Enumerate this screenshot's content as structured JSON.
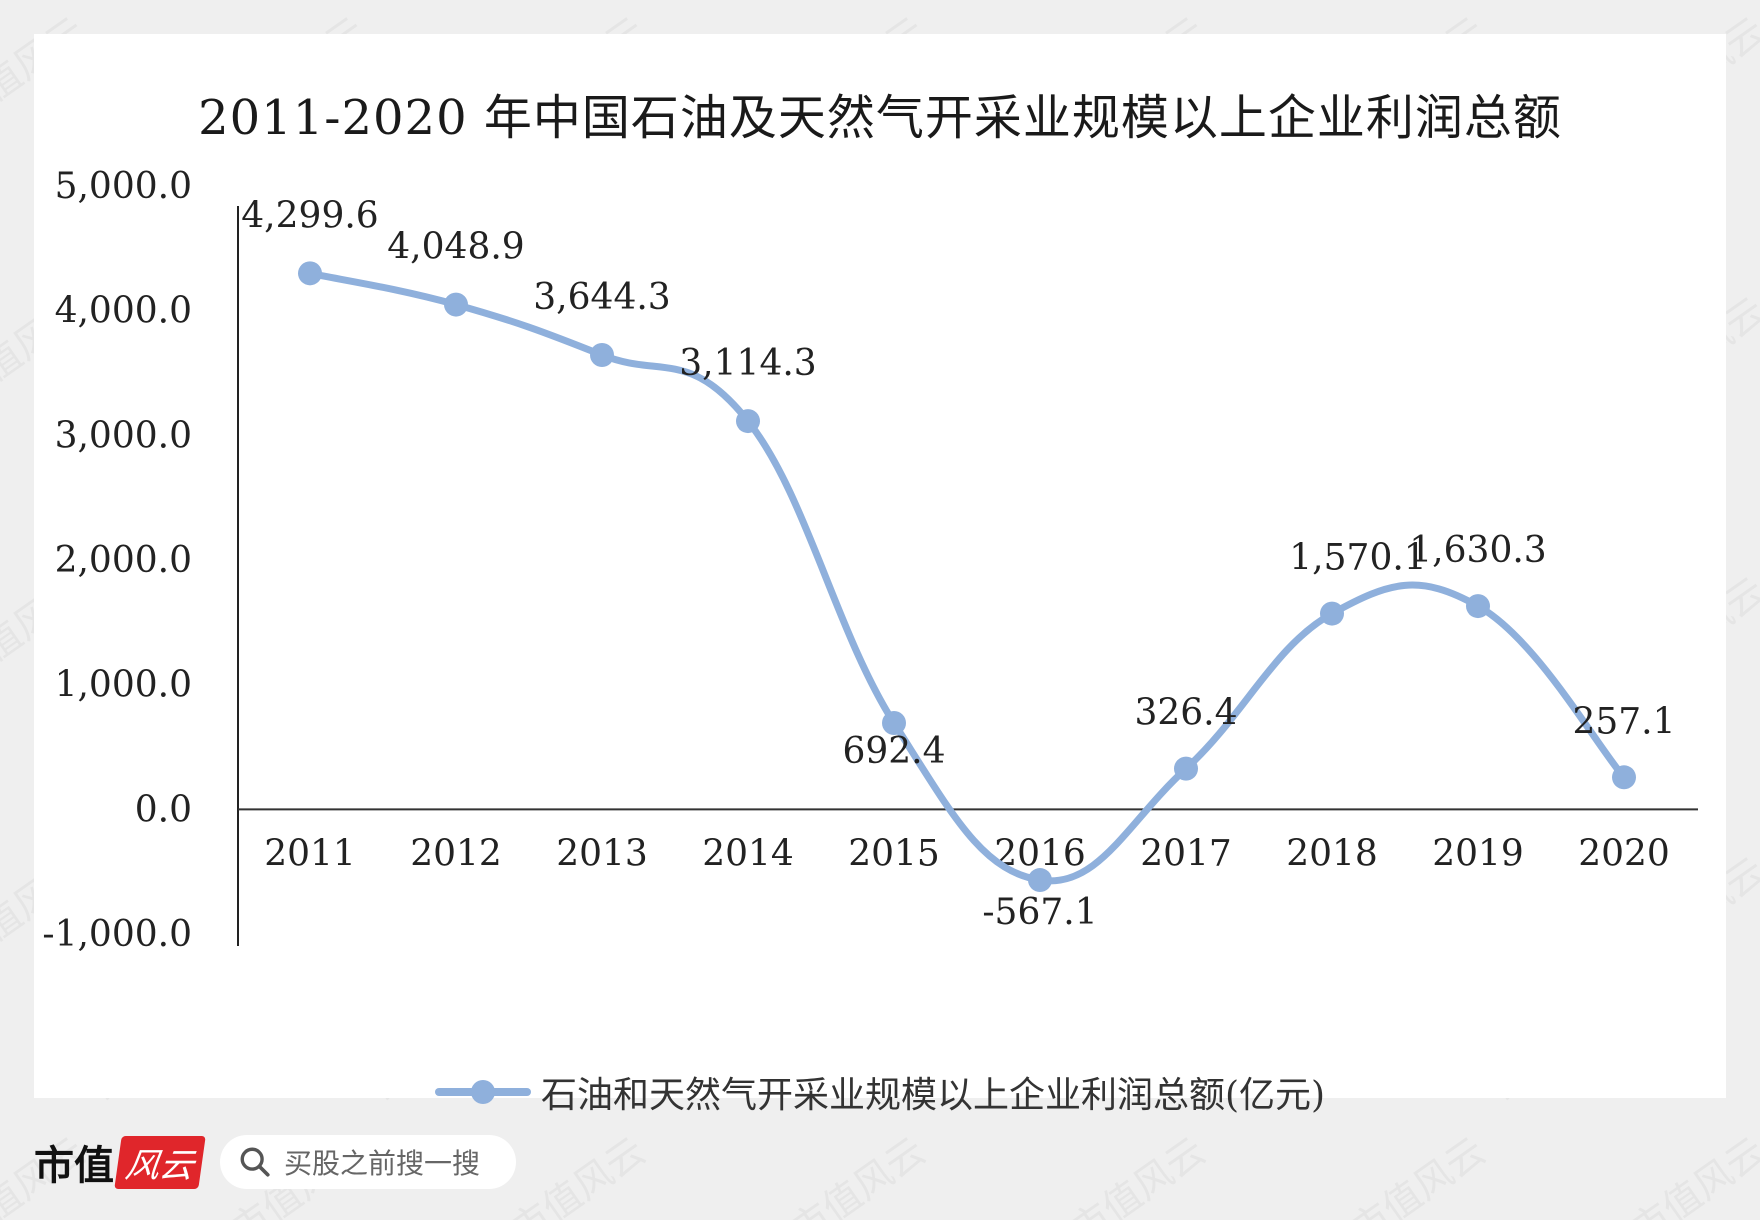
{
  "title": "2011-2020 年中国石油及天然气开采业规模以上企业利润总额",
  "chart_data": {
    "type": "line",
    "smooth": true,
    "title": "2011-2020 年中国石油及天然气开采业规模以上企业利润总额",
    "categories": [
      "2011",
      "2012",
      "2013",
      "2014",
      "2015",
      "2016",
      "2017",
      "2018",
      "2019",
      "2020"
    ],
    "series": [
      {
        "name": "石油和天然气开采业规模以上企业利润总额(亿元)",
        "values": [
          4299.6,
          4048.9,
          3644.3,
          3114.3,
          692.4,
          -567.1,
          326.4,
          1570.1,
          1630.3,
          257.1
        ],
        "labels": [
          "4,299.6",
          "4,048.9",
          "3,644.3",
          "3,114.3",
          "692.4",
          "-567.1",
          "326.4",
          "1,570.1",
          "1,630.3",
          "257.1"
        ],
        "color": "#8fb0dc"
      }
    ],
    "yticks": [
      "5,000.0",
      "4,000.0",
      "3,000.0",
      "2,000.0",
      "1,000.0",
      "0.0",
      "-1,000.0"
    ],
    "ytick_values": [
      5000,
      4000,
      3000,
      2000,
      1000,
      0,
      -1000
    ],
    "ylim": [
      -1000,
      5000
    ],
    "grid": false,
    "legend": "bottom"
  },
  "watermark": "市值风云",
  "footer": {
    "brand": "市值",
    "brand_logo": "风云",
    "search_placeholder": "买股之前搜一搜"
  }
}
